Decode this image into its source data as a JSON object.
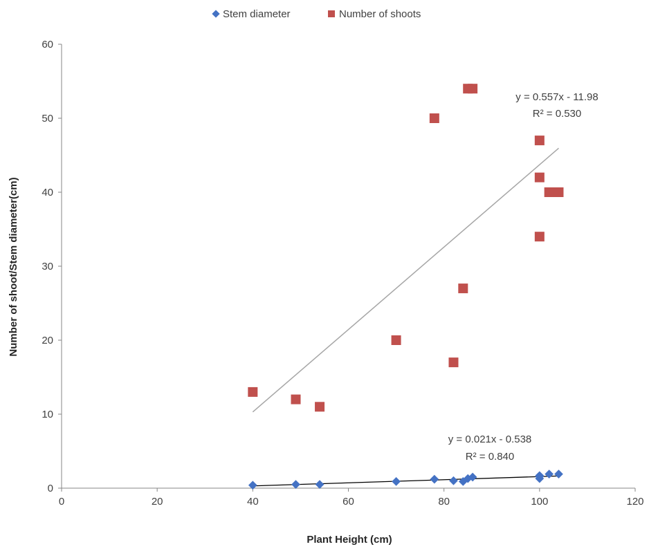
{
  "chart_data": {
    "type": "scatter",
    "title": "",
    "xlabel": "Plant Height (cm)",
    "ylabel": "Number of shoot/Stem diameter(cm)",
    "xlim": [
      0,
      120
    ],
    "ylim": [
      0,
      60
    ],
    "xticks": [
      0,
      20,
      40,
      60,
      80,
      100,
      120
    ],
    "yticks": [
      0,
      10,
      20,
      30,
      40,
      50,
      60
    ],
    "grid": false,
    "legend_position": "top",
    "series": [
      {
        "name": "Stem diameter",
        "marker": "diamond",
        "color": "#4472c4",
        "points": [
          [
            40,
            0.4
          ],
          [
            49,
            0.5
          ],
          [
            54,
            0.5
          ],
          [
            70,
            0.9
          ],
          [
            78,
            1.2
          ],
          [
            82,
            1.0
          ],
          [
            84,
            0.9
          ],
          [
            85,
            1.3
          ],
          [
            86,
            1.5
          ],
          [
            100,
            1.3
          ],
          [
            100,
            1.6
          ],
          [
            100,
            1.7
          ],
          [
            102,
            1.9
          ],
          [
            104,
            1.9
          ]
        ],
        "trendline": {
          "slope": 0.021,
          "intercept": -0.538,
          "x_range": [
            40,
            104
          ],
          "color": "#000000"
        },
        "equation_text": "y = 0.021x - 0.538",
        "r2_text": "R² = 0.840"
      },
      {
        "name": "Number of shoots",
        "marker": "square",
        "color": "#c0504d",
        "points": [
          [
            40,
            13
          ],
          [
            49,
            12
          ],
          [
            54,
            11
          ],
          [
            70,
            20
          ],
          [
            78,
            50
          ],
          [
            82,
            17
          ],
          [
            84,
            27
          ],
          [
            85,
            54
          ],
          [
            86,
            54
          ],
          [
            100,
            47
          ],
          [
            100,
            42
          ],
          [
            100,
            34
          ],
          [
            102,
            40
          ],
          [
            104,
            40
          ]
        ],
        "trendline": {
          "slope": 0.557,
          "intercept": -11.98,
          "x_range": [
            40,
            104
          ],
          "color": "#a6a6a6"
        },
        "equation_text": "y = 0.557x - 11.98",
        "r2_text": "R² = 0.530"
      }
    ]
  }
}
